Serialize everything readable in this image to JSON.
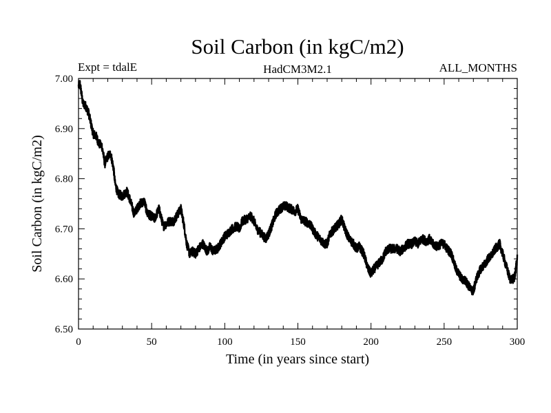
{
  "colors": {
    "line": "#000000",
    "axis": "#000000",
    "background": "#ffffff"
  },
  "chart_data": {
    "type": "line",
    "title": "Soil Carbon (in kgC/m2)",
    "subtitle_left": "Expt = tdalE",
    "subtitle_center": "HadCM3M2.1",
    "subtitle_right": "ALL_MONTHS",
    "xlabel": "Time (in years since start)",
    "ylabel": "Soil Carbon (in kgC/m2)",
    "xlim": [
      0,
      300
    ],
    "ylim": [
      6.5,
      7.0
    ],
    "xticks": [
      0,
      50,
      100,
      150,
      200,
      250,
      300
    ],
    "xtick_labels": [
      "0",
      "50",
      "100",
      "150",
      "200",
      "250",
      "300"
    ],
    "yticks": [
      6.5,
      6.6,
      6.7,
      6.8,
      6.9,
      7.0
    ],
    "ytick_labels": [
      "6.50",
      "6.60",
      "6.70",
      "6.80",
      "6.90",
      "7.00"
    ],
    "grid": false,
    "series": [
      {
        "values_note": "approximate annual-scale trace read from plot (monthly noise amplitude ~0.01)",
        "x": [
          0,
          1,
          2,
          3,
          5,
          7,
          10,
          12,
          14,
          16,
          18,
          20,
          22,
          24,
          25,
          27,
          30,
          33,
          35,
          38,
          40,
          42,
          45,
          47,
          50,
          52,
          55,
          58,
          60,
          62,
          65,
          68,
          70,
          72,
          74,
          76,
          78,
          80,
          82,
          85,
          88,
          90,
          92,
          95,
          98,
          100,
          102,
          105,
          108,
          110,
          112,
          115,
          118,
          120,
          122,
          125,
          128,
          130,
          132,
          135,
          138,
          140,
          142,
          145,
          148,
          150,
          152,
          155,
          158,
          160,
          162,
          165,
          168,
          170,
          172,
          175,
          178,
          180,
          182,
          185,
          188,
          190,
          192,
          195,
          198,
          200,
          202,
          205,
          208,
          210,
          212,
          215,
          218,
          220,
          222,
          225,
          228,
          230,
          232,
          235,
          238,
          240,
          242,
          245,
          248,
          250,
          252,
          255,
          258,
          260,
          262,
          265,
          268,
          270,
          272,
          275,
          278,
          280,
          282,
          285,
          288,
          290,
          292,
          295,
          298,
          300
        ],
        "y": [
          6.985,
          6.99,
          6.97,
          6.95,
          6.945,
          6.93,
          6.89,
          6.885,
          6.87,
          6.865,
          6.83,
          6.845,
          6.85,
          6.82,
          6.79,
          6.77,
          6.765,
          6.775,
          6.76,
          6.73,
          6.74,
          6.75,
          6.755,
          6.73,
          6.725,
          6.72,
          6.74,
          6.705,
          6.71,
          6.715,
          6.715,
          6.73,
          6.74,
          6.71,
          6.67,
          6.65,
          6.655,
          6.65,
          6.66,
          6.67,
          6.655,
          6.665,
          6.655,
          6.66,
          6.675,
          6.685,
          6.69,
          6.7,
          6.705,
          6.7,
          6.715,
          6.72,
          6.725,
          6.715,
          6.7,
          6.69,
          6.68,
          6.69,
          6.705,
          6.73,
          6.74,
          6.745,
          6.745,
          6.74,
          6.735,
          6.74,
          6.72,
          6.715,
          6.71,
          6.7,
          6.69,
          6.68,
          6.67,
          6.67,
          6.69,
          6.7,
          6.71,
          6.72,
          6.7,
          6.68,
          6.67,
          6.66,
          6.665,
          6.65,
          6.62,
          6.61,
          6.62,
          6.63,
          6.64,
          6.655,
          6.66,
          6.66,
          6.66,
          6.655,
          6.66,
          6.67,
          6.67,
          6.675,
          6.67,
          6.68,
          6.675,
          6.68,
          6.67,
          6.665,
          6.67,
          6.67,
          6.66,
          6.65,
          6.62,
          6.61,
          6.6,
          6.595,
          6.58,
          6.575,
          6.6,
          6.62,
          6.63,
          6.64,
          6.645,
          6.66,
          6.67,
          6.65,
          6.63,
          6.6,
          6.6,
          6.64
        ]
      }
    ]
  }
}
